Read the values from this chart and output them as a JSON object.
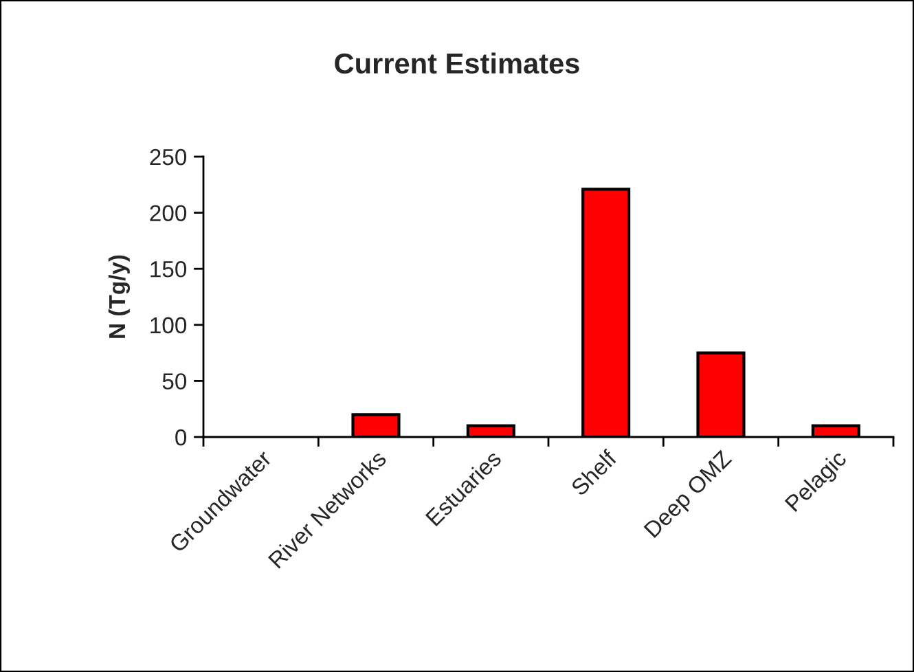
{
  "chart_data": {
    "type": "bar",
    "title": "Current Estimates",
    "ylabel": "N (Tg/y)",
    "categories": [
      "Groundwater",
      "River Networks",
      "Estuaries",
      "Shelf",
      "Deep OMZ",
      "Pelagic"
    ],
    "values": [
      0,
      20,
      10,
      221,
      75,
      10
    ],
    "color": "#ff0000",
    "ylim": [
      0,
      250
    ],
    "yticks": [
      0,
      50,
      100,
      150,
      200,
      250
    ],
    "grid": false,
    "legend": false
  }
}
